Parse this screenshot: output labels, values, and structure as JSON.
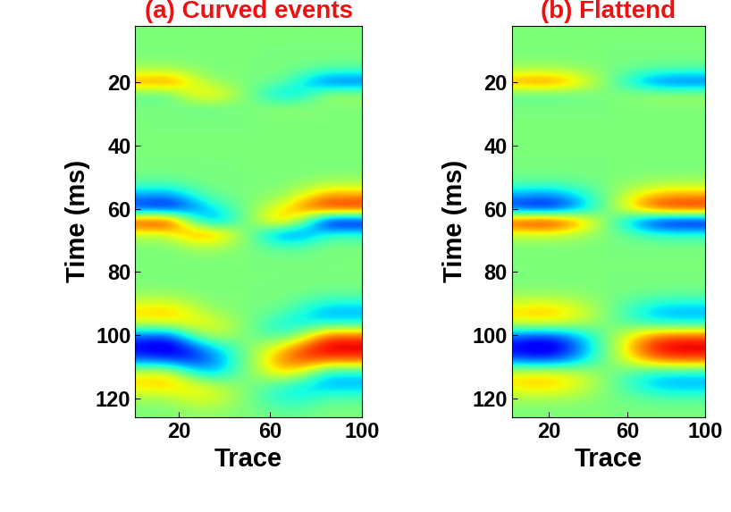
{
  "chart_data": [
    {
      "type": "heatmap",
      "title": "(a) Curved events",
      "xlabel": "Trace",
      "ylabel": "Time (ms)",
      "x": [
        5,
        15,
        25,
        35,
        45,
        55,
        65,
        75,
        85,
        95
      ],
      "y": [
        4,
        8,
        12,
        16,
        20,
        24,
        28,
        32,
        36,
        40,
        44,
        48,
        52,
        56,
        60,
        64,
        68,
        72,
        76,
        80,
        84,
        88,
        92,
        96,
        100,
        104,
        108,
        112,
        116,
        120,
        124
      ],
      "xlim": [
        1,
        100
      ],
      "ylim": [
        126,
        2
      ],
      "xticks": [
        20,
        60,
        100
      ],
      "yticks": [
        20,
        40,
        60,
        80,
        100,
        120
      ],
      "color_range": [
        -1,
        1
      ],
      "cells": [
        [
          0,
          0,
          0,
          0,
          0,
          0,
          0,
          0,
          0,
          0
        ],
        [
          0,
          0,
          0,
          0,
          0,
          0,
          0,
          0,
          0,
          0
        ],
        [
          0,
          0,
          0,
          0,
          0,
          0,
          0,
          0,
          0,
          0
        ],
        [
          0.09,
          0.1,
          0.05,
          0,
          0,
          0,
          0,
          -0.05,
          -0.1,
          -0.1
        ],
        [
          0.54,
          0.6,
          0.32,
          0.06,
          0.02,
          -0.02,
          -0.06,
          -0.32,
          -0.6,
          -0.6
        ],
        [
          -0.09,
          -0.1,
          0.23,
          0.36,
          0.12,
          -0.12,
          -0.36,
          -0.23,
          0.1,
          0.1
        ],
        [
          0,
          0,
          -0.05,
          -0.06,
          -0.02,
          0.02,
          0.06,
          0.05,
          0,
          0
        ],
        [
          0,
          0,
          0,
          0,
          0,
          0,
          0,
          0,
          0,
          0
        ],
        [
          0,
          0,
          0,
          0,
          0,
          0,
          0,
          0,
          0,
          0
        ],
        [
          0,
          0,
          0,
          0,
          0,
          0,
          0,
          0,
          0,
          0
        ],
        [
          0,
          0,
          0,
          0,
          0,
          0,
          0,
          0,
          0,
          0
        ],
        [
          0,
          0,
          0,
          0,
          0,
          0,
          0,
          0,
          0,
          0
        ],
        [
          -0.09,
          -0.1,
          -0.05,
          0,
          0,
          0,
          0,
          0.05,
          0.1,
          0.1
        ],
        [
          -0.45,
          -0.5,
          -0.27,
          -0.06,
          -0.02,
          0.02,
          0.06,
          0.27,
          0.5,
          0.5
        ],
        [
          -0.72,
          -0.8,
          -0.59,
          -0.3,
          -0.1,
          0.1,
          0.3,
          0.59,
          0.8,
          0.8
        ],
        [
          0.81,
          0.9,
          0.05,
          -0.48,
          -0.16,
          0.16,
          0.48,
          -0.05,
          -0.9,
          -0.9
        ],
        [
          0.18,
          0.2,
          0.5,
          0.54,
          0.18,
          -0.18,
          -0.54,
          -0.5,
          -0.2,
          -0.2
        ],
        [
          0,
          0,
          0.09,
          0.12,
          0.04,
          -0.04,
          -0.12,
          -0.09,
          0,
          0
        ],
        [
          0,
          0,
          0,
          0,
          0,
          0,
          0,
          0,
          0,
          0
        ],
        [
          0,
          0,
          0,
          0,
          0,
          0,
          0,
          0,
          0,
          0
        ],
        [
          0,
          0,
          0,
          0,
          0,
          0,
          0,
          0,
          0,
          0
        ],
        [
          0.09,
          0.1,
          0.05,
          0,
          0,
          0,
          0,
          -0.05,
          -0.1,
          -0.1
        ],
        [
          0.36,
          0.4,
          0.23,
          0.06,
          0.02,
          -0.02,
          -0.06,
          -0.23,
          -0.4,
          -0.4
        ],
        [
          0.27,
          0.3,
          0.32,
          0.24,
          0.08,
          -0.08,
          -0.24,
          -0.32,
          -0.3,
          -0.3
        ],
        [
          -0.54,
          -0.6,
          -0.14,
          0.18,
          0.06,
          -0.06,
          -0.18,
          0.14,
          0.6,
          0.6
        ],
        [
          -0.81,
          -0.9,
          -0.68,
          -0.36,
          -0.12,
          0.12,
          0.36,
          0.68,
          0.9,
          0.9
        ],
        [
          -0.54,
          -0.6,
          -0.68,
          -0.54,
          -0.18,
          0.18,
          0.54,
          0.68,
          0.6,
          0.6
        ],
        [
          0.27,
          0.3,
          -0.14,
          -0.36,
          -0.12,
          0.12,
          0.36,
          0.14,
          -0.3,
          -0.3
        ],
        [
          0.36,
          0.4,
          0.32,
          0.18,
          0.06,
          -0.06,
          -0.18,
          -0.32,
          -0.4,
          -0.4
        ],
        [
          0.09,
          0.1,
          0.23,
          0.24,
          0.08,
          -0.08,
          -0.24,
          -0.23,
          -0.1,
          -0.1
        ],
        [
          0,
          0,
          0.05,
          0.06,
          0.02,
          -0.02,
          -0.06,
          -0.05,
          0,
          0
        ]
      ]
    },
    {
      "type": "heatmap",
      "title": "(b) Flattend",
      "xlabel": "Trace",
      "ylabel": "Time (ms)",
      "x": [
        5,
        15,
        25,
        35,
        45,
        55,
        65,
        75,
        85,
        95
      ],
      "y": [
        4,
        8,
        12,
        16,
        20,
        24,
        28,
        32,
        36,
        40,
        44,
        48,
        52,
        56,
        60,
        64,
        68,
        72,
        76,
        80,
        84,
        88,
        92,
        96,
        100,
        104,
        108,
        112,
        116,
        120,
        124
      ],
      "xlim": [
        1,
        100
      ],
      "ylim": [
        126,
        2
      ],
      "xticks": [
        20,
        60,
        100
      ],
      "yticks": [
        20,
        40,
        60,
        80,
        100,
        120
      ],
      "color_range": [
        -1,
        1
      ],
      "cells": [
        [
          0,
          0,
          0,
          0,
          0,
          0,
          0,
          0,
          0,
          0
        ],
        [
          0,
          0,
          0,
          0,
          0,
          0,
          0,
          0,
          0,
          0
        ],
        [
          0,
          0,
          0,
          0,
          0,
          0,
          0,
          0,
          0,
          0
        ],
        [
          0.09,
          0.1,
          0.09,
          0.06,
          0.02,
          -0.02,
          -0.06,
          -0.09,
          -0.1,
          -0.1
        ],
        [
          0.54,
          0.6,
          0.54,
          0.36,
          0.12,
          -0.12,
          -0.36,
          -0.54,
          -0.6,
          -0.6
        ],
        [
          -0.09,
          -0.1,
          -0.09,
          -0.06,
          -0.02,
          0.02,
          0.06,
          0.09,
          0.1,
          0.1
        ],
        [
          0,
          0,
          0,
          0,
          0,
          0,
          0,
          0,
          0,
          0
        ],
        [
          0,
          0,
          0,
          0,
          0,
          0,
          0,
          0,
          0,
          0
        ],
        [
          0,
          0,
          0,
          0,
          0,
          0,
          0,
          0,
          0,
          0
        ],
        [
          0,
          0,
          0,
          0,
          0,
          0,
          0,
          0,
          0,
          0
        ],
        [
          0,
          0,
          0,
          0,
          0,
          0,
          0,
          0,
          0,
          0
        ],
        [
          0,
          0,
          0,
          0,
          0,
          0,
          0,
          0,
          0,
          0
        ],
        [
          -0.09,
          -0.1,
          -0.09,
          -0.06,
          -0.02,
          0.02,
          0.06,
          0.09,
          0.1,
          0.1
        ],
        [
          -0.45,
          -0.5,
          -0.45,
          -0.3,
          -0.1,
          0.1,
          0.3,
          0.45,
          0.5,
          0.5
        ],
        [
          -0.72,
          -0.8,
          -0.72,
          -0.48,
          -0.16,
          0.16,
          0.48,
          0.72,
          0.8,
          0.8
        ],
        [
          0.81,
          0.9,
          0.81,
          0.54,
          0.18,
          -0.18,
          -0.54,
          -0.81,
          -0.9,
          -0.9
        ],
        [
          0.18,
          0.2,
          0.18,
          0.12,
          0.04,
          -0.04,
          -0.12,
          -0.18,
          -0.2,
          -0.2
        ],
        [
          0,
          0,
          0,
          0,
          0,
          0,
          0,
          0,
          0,
          0
        ],
        [
          0,
          0,
          0,
          0,
          0,
          0,
          0,
          0,
          0,
          0
        ],
        [
          0,
          0,
          0,
          0,
          0,
          0,
          0,
          0,
          0,
          0
        ],
        [
          0,
          0,
          0,
          0,
          0,
          0,
          0,
          0,
          0,
          0
        ],
        [
          0.09,
          0.1,
          0.09,
          0.06,
          0.02,
          -0.02,
          -0.06,
          -0.09,
          -0.1,
          -0.1
        ],
        [
          0.36,
          0.4,
          0.36,
          0.24,
          0.08,
          -0.08,
          -0.24,
          -0.36,
          -0.4,
          -0.4
        ],
        [
          0.27,
          0.3,
          0.27,
          0.18,
          0.06,
          -0.06,
          -0.18,
          -0.27,
          -0.3,
          -0.3
        ],
        [
          -0.54,
          -0.6,
          -0.54,
          -0.36,
          -0.12,
          0.12,
          0.36,
          0.54,
          0.6,
          0.6
        ],
        [
          -0.81,
          -0.9,
          -0.81,
          -0.54,
          -0.18,
          0.18,
          0.54,
          0.81,
          0.9,
          0.9
        ],
        [
          -0.54,
          -0.6,
          -0.54,
          -0.36,
          -0.12,
          0.12,
          0.36,
          0.54,
          0.6,
          0.6
        ],
        [
          0.27,
          0.3,
          0.27,
          0.18,
          0.06,
          -0.06,
          -0.18,
          -0.27,
          -0.3,
          -0.3
        ],
        [
          0.36,
          0.4,
          0.36,
          0.24,
          0.08,
          -0.08,
          -0.24,
          -0.36,
          -0.4,
          -0.4
        ],
        [
          0.09,
          0.1,
          0.09,
          0.06,
          0.02,
          -0.02,
          -0.06,
          -0.09,
          -0.1,
          -0.1
        ],
        [
          0,
          0,
          0,
          0,
          0,
          0,
          0,
          0,
          0,
          0
        ]
      ]
    }
  ]
}
